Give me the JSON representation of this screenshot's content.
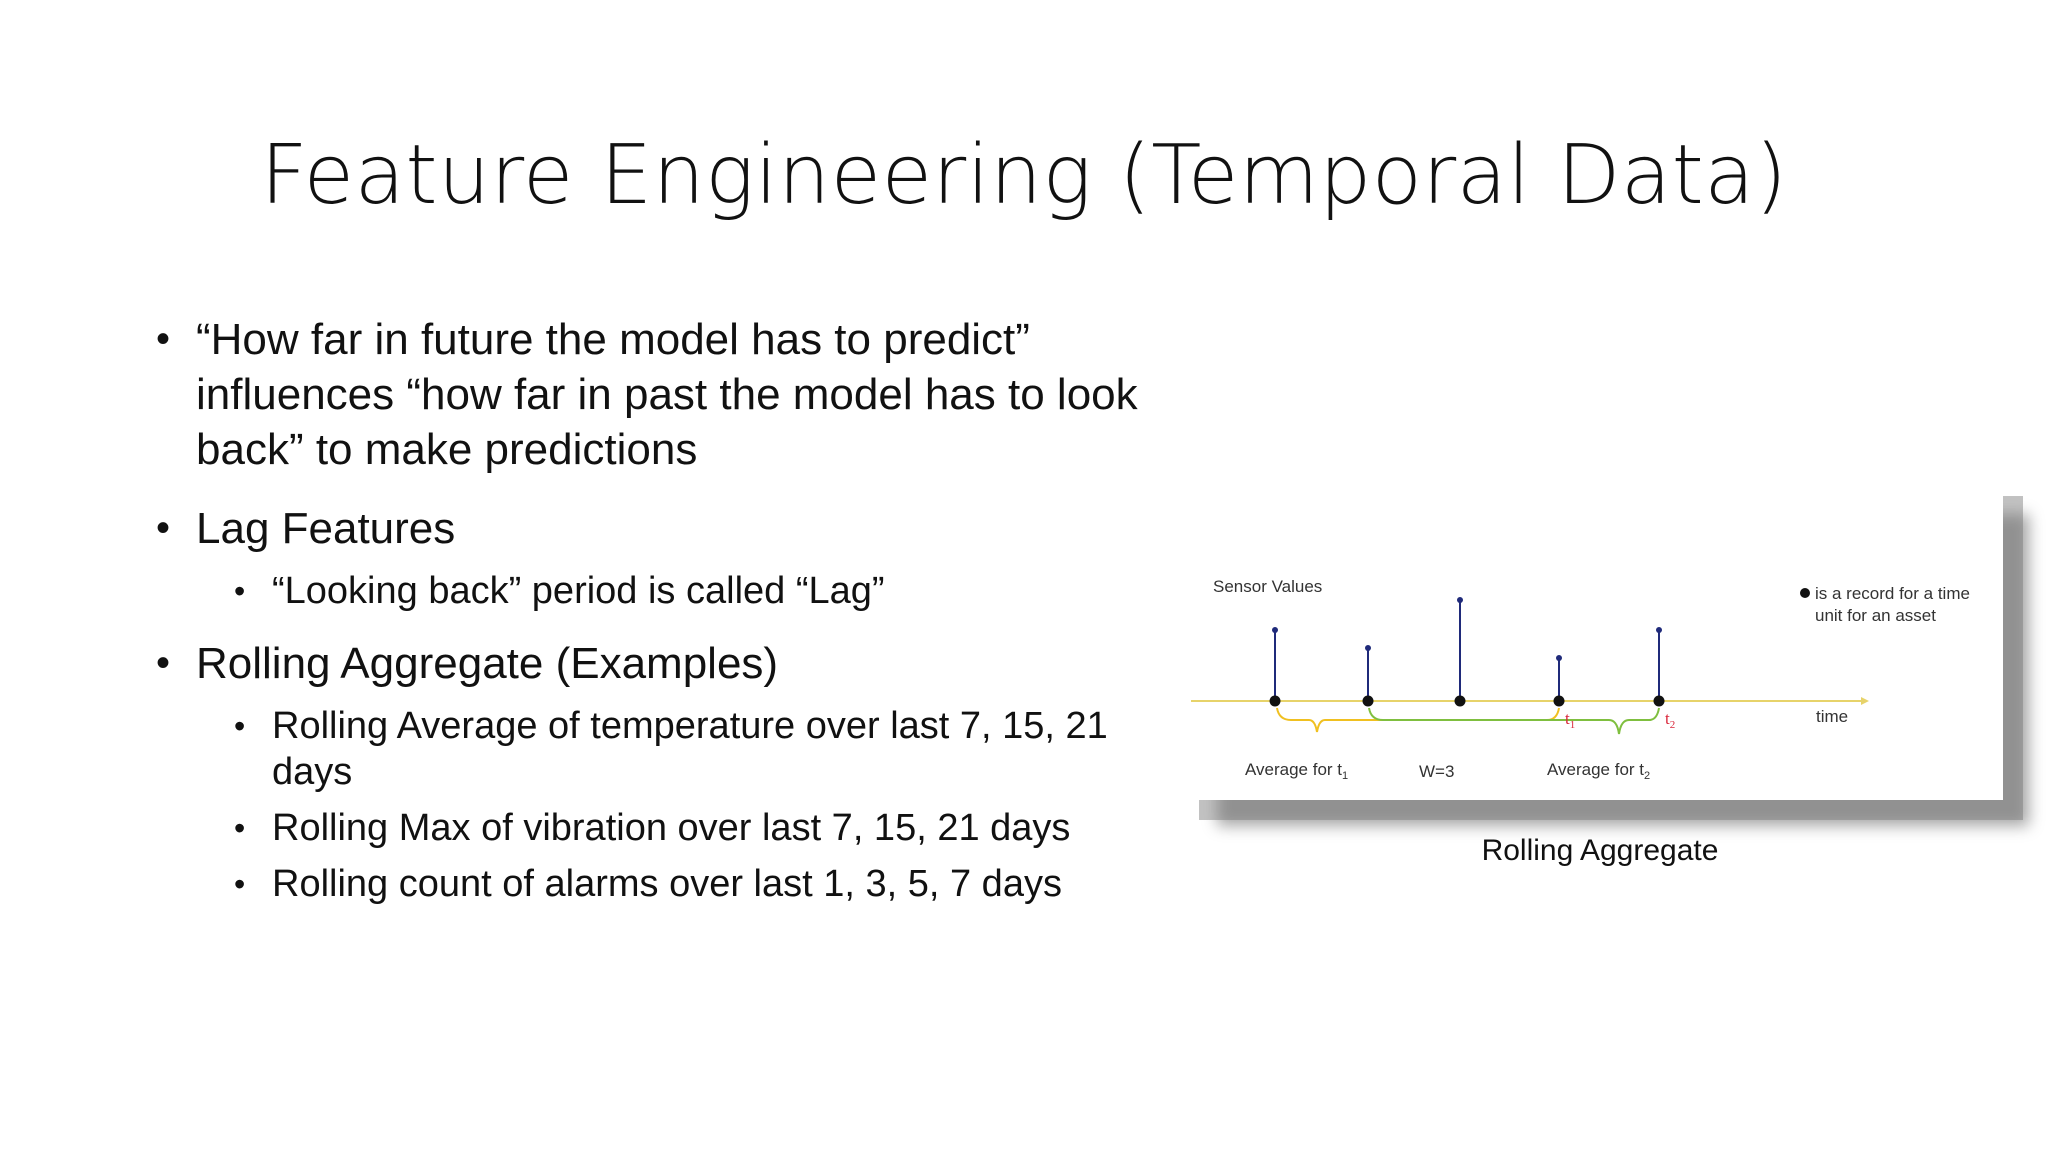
{
  "slide": {
    "title": "Feature Engineering (Temporal Data)",
    "bullets": [
      {
        "text": "“How far in future the model has to predict” influences “how far in past the model has to look back” to make predictions"
      },
      {
        "text": "Lag Features"
      },
      {
        "text": "“Looking back” period is called “Lag”"
      },
      {
        "text": "Rolling Aggregate (Examples)"
      },
      {
        "text": "Rolling Average of temperature over last 7, 15, 21 days"
      },
      {
        "text": "Rolling Max of vibration over last 7, 15, 21 days"
      },
      {
        "text": "Rolling count of alarms over last 1, 3, 5, 7 days"
      }
    ],
    "caption": "Rolling Aggregate"
  },
  "figure": {
    "y_label": "Sensor Values",
    "x_label": "time",
    "legend_line1": "is a record for a time",
    "legend_line2": "unit for an asset",
    "t1_label": "t",
    "t1_sub": "1",
    "t2_label": "t",
    "t2_sub": "2",
    "avg_t1": "Average for  t",
    "avg_t1_sub": "1",
    "window": "W=3",
    "avg_t2": "Average for  t",
    "avg_t2_sub": "2",
    "colors": {
      "axis": "#e7d36a",
      "stem": "#1f2a7a",
      "dot": "#111111",
      "brace_yellow": "#f0c020",
      "brace_green": "#7fbf3f",
      "t_label": "#d9263a"
    }
  }
}
